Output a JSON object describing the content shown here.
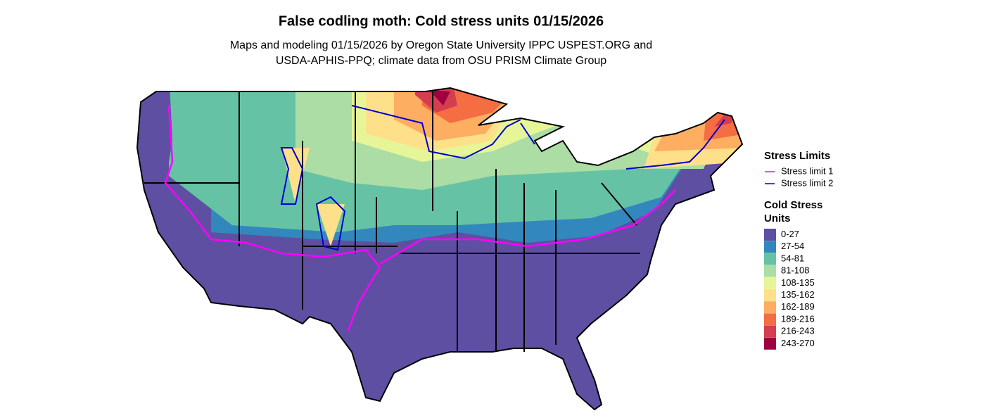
{
  "title": "False codling moth: Cold stress units 01/15/2026",
  "subtitle": [
    "Maps and modeling 01/15/2026 by Oregon State University IPPC USPEST.ORG and",
    "USDA-APHIS-PPQ; climate data from OSU PRISM Climate Group"
  ],
  "legend_limits": {
    "title": "Stress Limits",
    "items": [
      {
        "label": "Stress limit 1",
        "color": "#ff00ff"
      },
      {
        "label": "Stress limit 2",
        "color": "#0000cc"
      }
    ]
  },
  "legend_units": {
    "title": [
      "Cold Stress",
      "Units"
    ],
    "items": [
      {
        "label": "0-27",
        "color": "#5e4fa2"
      },
      {
        "label": "27-54",
        "color": "#3288bd"
      },
      {
        "label": "54-81",
        "color": "#66c2a5"
      },
      {
        "label": "81-108",
        "color": "#abdda4"
      },
      {
        "label": "108-135",
        "color": "#e6f598"
      },
      {
        "label": "135-162",
        "color": "#fee08b"
      },
      {
        "label": "162-189",
        "color": "#fdae61"
      },
      {
        "label": "189-216",
        "color": "#f46d43"
      },
      {
        "label": "216-243",
        "color": "#d53e4f"
      },
      {
        "label": "243-270",
        "color": "#9e0142"
      }
    ]
  }
}
